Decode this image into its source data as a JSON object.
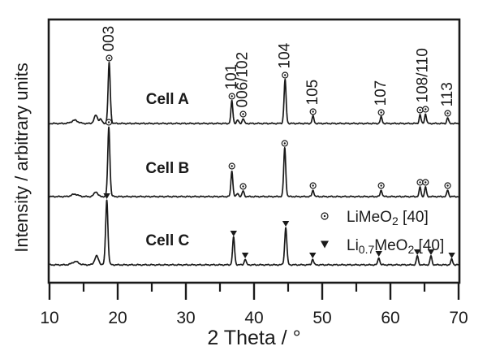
{
  "figure": {
    "background": "#ffffff",
    "ink_color": "#1a1a1a"
  },
  "chart_data": {
    "type": "line",
    "title": "",
    "xlabel": "2 Theta / °",
    "ylabel": "Intensity / arbitrary units",
    "xlim": [
      10,
      70
    ],
    "x_major_ticks": [
      10,
      20,
      30,
      40,
      50,
      60,
      70
    ],
    "x_minor_ticks": [
      15,
      25,
      35,
      45,
      55,
      65
    ],
    "grid": false,
    "y_axis_ticks": "none (arbitrary units)",
    "series": [
      {
        "name": "Cell A",
        "marker": "circle-dot",
        "baseline_y": 152,
        "label_x_two_theta": 27.3,
        "label_baseline_y": 128,
        "peaks": [
          {
            "two_theta": 13.7,
            "height": 4,
            "sigma": 0.5,
            "marked": false
          },
          {
            "two_theta": 16.8,
            "height": 10,
            "sigma": 0.28,
            "marked": false
          },
          {
            "two_theta": 17.5,
            "height": 5,
            "sigma": 0.2,
            "marked": false
          },
          {
            "two_theta": 18.75,
            "height": 75,
            "sigma": 0.17,
            "marked": true,
            "hkl": "003"
          },
          {
            "two_theta": 36.75,
            "height": 28,
            "sigma": 0.15,
            "marked": true,
            "hkl": "101"
          },
          {
            "two_theta": 37.6,
            "height": 4,
            "sigma": 0.15,
            "marked": false,
            "hkl": "006"
          },
          {
            "two_theta": 38.4,
            "height": 6,
            "sigma": 0.15,
            "marked": true,
            "hkl": "102"
          },
          {
            "two_theta": 44.55,
            "height": 54,
            "sigma": 0.16,
            "marked": true,
            "hkl": "104"
          },
          {
            "two_theta": 48.65,
            "height": 9,
            "sigma": 0.15,
            "marked": true,
            "hkl": "105"
          },
          {
            "two_theta": 58.65,
            "height": 8,
            "sigma": 0.15,
            "marked": true,
            "hkl": "107"
          },
          {
            "two_theta": 64.35,
            "height": 11,
            "sigma": 0.14,
            "marked": true,
            "hkl": "108"
          },
          {
            "two_theta": 65.15,
            "height": 12,
            "sigma": 0.14,
            "marked": true,
            "hkl": "110"
          },
          {
            "two_theta": 68.4,
            "height": 7,
            "sigma": 0.14,
            "marked": true,
            "hkl": "113"
          }
        ]
      },
      {
        "name": "Cell B",
        "marker": "circle-dot",
        "baseline_y": 242,
        "label_x_two_theta": 27.3,
        "label_baseline_y": 213,
        "peaks": [
          {
            "two_theta": 13.7,
            "height": 3,
            "sigma": 0.5,
            "marked": false
          },
          {
            "two_theta": 16.8,
            "height": 6,
            "sigma": 0.28,
            "marked": false
          },
          {
            "two_theta": 18.7,
            "height": 86,
            "sigma": 0.17,
            "marked": true,
            "hkl": "003"
          },
          {
            "two_theta": 36.75,
            "height": 32,
            "sigma": 0.15,
            "marked": true,
            "hkl": "101"
          },
          {
            "two_theta": 37.6,
            "height": 4,
            "sigma": 0.15,
            "marked": false,
            "hkl": "006"
          },
          {
            "two_theta": 38.4,
            "height": 7,
            "sigma": 0.15,
            "marked": true,
            "hkl": "102"
          },
          {
            "two_theta": 44.5,
            "height": 60,
            "sigma": 0.16,
            "marked": true,
            "hkl": "104"
          },
          {
            "two_theta": 48.65,
            "height": 8,
            "sigma": 0.15,
            "marked": true,
            "hkl": "105"
          },
          {
            "two_theta": 58.65,
            "height": 8,
            "sigma": 0.15,
            "marked": true,
            "hkl": "107"
          },
          {
            "two_theta": 64.35,
            "height": 12,
            "sigma": 0.14,
            "marked": true,
            "hkl": "108"
          },
          {
            "two_theta": 65.15,
            "height": 12,
            "sigma": 0.14,
            "marked": true,
            "hkl": "110"
          },
          {
            "two_theta": 68.4,
            "height": 8,
            "sigma": 0.14,
            "marked": true,
            "hkl": "113"
          }
        ]
      },
      {
        "name": "Cell C",
        "marker": "triangle-down",
        "baseline_y": 326,
        "label_x_two_theta": 27.3,
        "label_baseline_y": 302,
        "peaks": [
          {
            "two_theta": 13.8,
            "height": 4,
            "sigma": 0.5,
            "marked": false
          },
          {
            "two_theta": 16.9,
            "height": 11,
            "sigma": 0.3,
            "marked": false
          },
          {
            "two_theta": 18.4,
            "height": 80,
            "sigma": 0.18,
            "marked": true
          },
          {
            "two_theta": 37.0,
            "height": 34,
            "sigma": 0.16,
            "marked": true
          },
          {
            "two_theta": 38.7,
            "height": 7,
            "sigma": 0.15,
            "marked": true
          },
          {
            "two_theta": 44.65,
            "height": 46,
            "sigma": 0.17,
            "marked": true
          },
          {
            "two_theta": 48.6,
            "height": 7,
            "sigma": 0.15,
            "marked": true
          },
          {
            "two_theta": 58.3,
            "height": 9,
            "sigma": 0.15,
            "marked": true
          },
          {
            "two_theta": 63.95,
            "height": 11,
            "sigma": 0.15,
            "marked": true
          },
          {
            "two_theta": 65.95,
            "height": 11,
            "sigma": 0.15,
            "marked": true
          },
          {
            "two_theta": 69.0,
            "height": 7,
            "sigma": 0.15,
            "marked": true
          }
        ]
      }
    ],
    "peak_annotations": [
      {
        "label": "003",
        "x_two_theta": 18.75
      },
      {
        "label": "101",
        "x_two_theta": 36.7
      },
      {
        "label": "006/102",
        "x_two_theta": 38.35
      },
      {
        "label": "104",
        "x_two_theta": 44.55
      },
      {
        "label": "105",
        "x_two_theta": 48.65
      },
      {
        "label": "107",
        "x_two_theta": 58.65
      },
      {
        "label": "108/110",
        "x_two_theta": 64.75
      },
      {
        "label": "113",
        "x_two_theta": 68.4
      }
    ],
    "legend": {
      "items": [
        {
          "marker": "circle-dot",
          "marker_xy": [
            400,
            266
          ],
          "text_xy": [
            427,
            273
          ],
          "parts": [
            {
              "text": "LiMeO"
            },
            {
              "text": "2",
              "sub": true
            },
            {
              "text": " [40]"
            }
          ],
          "plain_text": "LiMeO2 [40]"
        },
        {
          "marker": "triangle-down",
          "marker_xy": [
            400,
            301
          ],
          "text_xy": [
            427,
            308
          ],
          "parts": [
            {
              "text": "Li"
            },
            {
              "text": "0.7",
              "sub": true
            },
            {
              "text": "MeO"
            },
            {
              "text": "2",
              "sub": true
            },
            {
              "text": " [40]"
            }
          ],
          "plain_text": "Li0.7MeO2 [40]"
        }
      ]
    }
  }
}
